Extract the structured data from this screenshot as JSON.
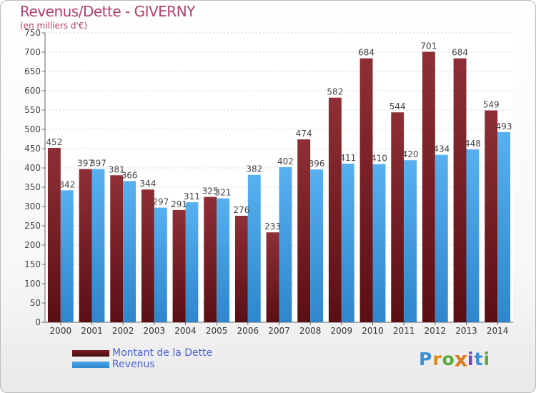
{
  "header": {
    "title": "Revenus/Dette - GIVERNY",
    "subtitle": "(en milliers d'€)"
  },
  "colors": {
    "dette": "#7a1c23",
    "revenus": "#4da6e8",
    "title": "#b3406b",
    "legend_text": "#4b62d8"
  },
  "legend": {
    "dette_label": "Montant de la Dette",
    "revenus_label": "Revenus"
  },
  "logo": {
    "text": "Proxiti",
    "letters": [
      "P",
      "r",
      "o",
      "x",
      "i",
      "t",
      "i"
    ],
    "letter_colors": [
      "#3b8fd6",
      "#e08a1e",
      "#5bab3a",
      "#e07a1e",
      "#7a3fb0",
      "#3b8fd6",
      "#5bab3a"
    ]
  },
  "chart_data": {
    "type": "bar",
    "categories": [
      "2000",
      "2001",
      "2002",
      "2003",
      "2004",
      "2005",
      "2006",
      "2007",
      "2008",
      "2009",
      "2010",
      "2011",
      "2012",
      "2013",
      "2014"
    ],
    "series": [
      {
        "name": "Montant de la Dette",
        "values": [
          452,
          397,
          381,
          344,
          291,
          325,
          276,
          233,
          474,
          582,
          684,
          544,
          701,
          684,
          549
        ]
      },
      {
        "name": "Revenus",
        "values": [
          342,
          397,
          366,
          297,
          311,
          321,
          382,
          402,
          396,
          411,
          410,
          420,
          434,
          448,
          493
        ]
      }
    ],
    "data_labels": [
      [
        "452",
        "397",
        "381",
        "344",
        "291",
        "325",
        "276",
        "233",
        "474",
        "582",
        "684",
        "544",
        "701",
        "684",
        "549"
      ],
      [
        "342",
        "397",
        "366",
        "297",
        "311",
        "321",
        "382",
        "402",
        "396",
        "411",
        "410",
        "420",
        "434",
        "448",
        "493"
      ]
    ],
    "yticks": [
      "0",
      "50",
      "100",
      "150",
      "200",
      "250",
      "300",
      "350",
      "400",
      "450",
      "500",
      "550",
      "600",
      "650",
      "700",
      "750"
    ],
    "ylim": [
      0,
      750
    ],
    "grid": true,
    "legend_position": "bottom-left"
  }
}
